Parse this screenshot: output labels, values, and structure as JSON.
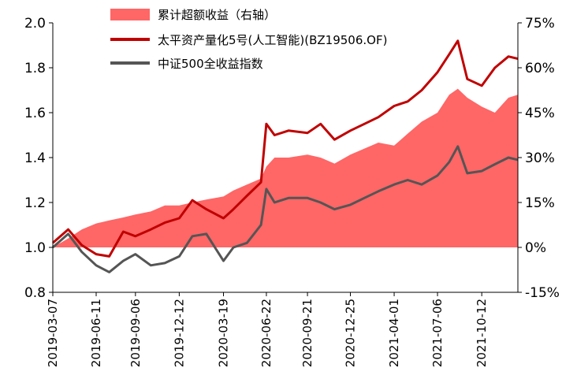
{
  "chart_data": {
    "type": "line",
    "title": "",
    "legend_position": "top-center",
    "grid": false,
    "x_ticks": [
      "2019-03-07",
      "2019-06-11",
      "2019-09-06",
      "2019-12-12",
      "2020-03-19",
      "2020-06-22",
      "2020-09-21",
      "2020-12-25",
      "2021-04-01",
      "2021-07-06",
      "2021-10-12"
    ],
    "left_axis": {
      "ylim": [
        0.8,
        2.0
      ],
      "ticks": [
        "0.8",
        "1.0",
        "1.2",
        "1.4",
        "1.6",
        "1.8",
        "2.0"
      ]
    },
    "right_axis": {
      "ylim": [
        -0.15,
        0.75
      ],
      "ticks": [
        "-15%",
        "0%",
        "15%",
        "30%",
        "45%",
        "60%",
        "75%"
      ]
    },
    "x": [
      "2019-03-07",
      "2019-04-10",
      "2019-05-10",
      "2019-06-11",
      "2019-07-10",
      "2019-08-10",
      "2019-09-06",
      "2019-10-10",
      "2019-11-10",
      "2019-12-12",
      "2020-01-10",
      "2020-02-10",
      "2020-03-19",
      "2020-04-10",
      "2020-05-10",
      "2020-06-10",
      "2020-06-22",
      "2020-07-10",
      "2020-08-10",
      "2020-09-21",
      "2020-10-20",
      "2020-11-20",
      "2020-12-25",
      "2021-01-25",
      "2021-02-25",
      "2021-04-01",
      "2021-05-01",
      "2021-06-01",
      "2021-07-06",
      "2021-08-01",
      "2021-08-20",
      "2021-09-10",
      "2021-10-12",
      "2021-11-10",
      "2021-12-10",
      "2021-12-31"
    ],
    "series": [
      {
        "name": "累计超额收益（右轴）",
        "type": "area",
        "axis": "right",
        "color": "#ff6666",
        "values": [
          0.0,
          0.03,
          0.06,
          0.08,
          0.09,
          0.1,
          0.11,
          0.12,
          0.14,
          0.14,
          0.15,
          0.16,
          0.17,
          0.19,
          0.21,
          0.23,
          0.27,
          0.3,
          0.3,
          0.31,
          0.3,
          0.28,
          0.31,
          0.33,
          0.35,
          0.34,
          0.38,
          0.42,
          0.45,
          0.51,
          0.53,
          0.5,
          0.47,
          0.45,
          0.5,
          0.51
        ]
      },
      {
        "name": "太平资产量化5号(人工智能)(BZ19506.OF)",
        "type": "line",
        "axis": "left",
        "color": "#c00000",
        "values": [
          1.02,
          1.08,
          1.01,
          0.97,
          0.96,
          1.07,
          1.05,
          1.08,
          1.11,
          1.13,
          1.21,
          1.17,
          1.13,
          1.17,
          1.23,
          1.29,
          1.55,
          1.5,
          1.52,
          1.51,
          1.55,
          1.48,
          1.52,
          1.55,
          1.58,
          1.63,
          1.65,
          1.7,
          1.78,
          1.86,
          1.92,
          1.75,
          1.72,
          1.8,
          1.85,
          1.84
        ]
      },
      {
        "name": "中证500全收益指数",
        "type": "line",
        "axis": "left",
        "color": "#555555",
        "values": [
          1.0,
          1.06,
          0.98,
          0.92,
          0.89,
          0.94,
          0.97,
          0.92,
          0.93,
          0.96,
          1.05,
          1.06,
          0.94,
          1.0,
          1.02,
          1.1,
          1.26,
          1.2,
          1.22,
          1.22,
          1.2,
          1.17,
          1.19,
          1.22,
          1.25,
          1.28,
          1.3,
          1.28,
          1.32,
          1.38,
          1.45,
          1.33,
          1.34,
          1.37,
          1.4,
          1.39
        ]
      }
    ]
  }
}
